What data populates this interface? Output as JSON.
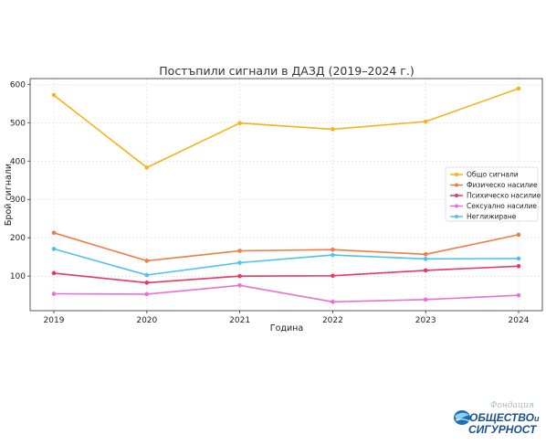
{
  "chart_data": {
    "type": "line",
    "title": "Постъпили сигнали в ДАЗД (2019–2024 г.)",
    "xlabel": "Година",
    "ylabel": "Брой сигнали",
    "x": [
      2019,
      2020,
      2021,
      2022,
      2023,
      2024
    ],
    "ylim": [
      10,
      615
    ],
    "yticks": [
      100,
      200,
      300,
      400,
      500,
      600
    ],
    "grid": true,
    "legend_position": "right",
    "series": [
      {
        "name": "Общо сигнали",
        "color": "#f5b31c",
        "values": [
          572,
          383,
          499,
          483,
          503,
          589
        ]
      },
      {
        "name": "Физическо насилие",
        "color": "#ef7d45",
        "values": [
          213,
          140,
          166,
          169,
          157,
          208
        ]
      },
      {
        "name": "Психическо насилие",
        "color": "#e8395f",
        "values": [
          108,
          83,
          100,
          101,
          115,
          126
        ]
      },
      {
        "name": "Сексуално насилие",
        "color": "#ee6fd0",
        "values": [
          54,
          53,
          76,
          33,
          39,
          50
        ]
      },
      {
        "name": "Неглижиране",
        "color": "#4cc3ee",
        "values": [
          171,
          103,
          135,
          155,
          145,
          146
        ]
      }
    ]
  },
  "logo": {
    "script_text": "Фондация",
    "line1_a": "ОБЩЕСТВО",
    "line1_b": "и",
    "line2": "СИГУРНОСТ"
  }
}
